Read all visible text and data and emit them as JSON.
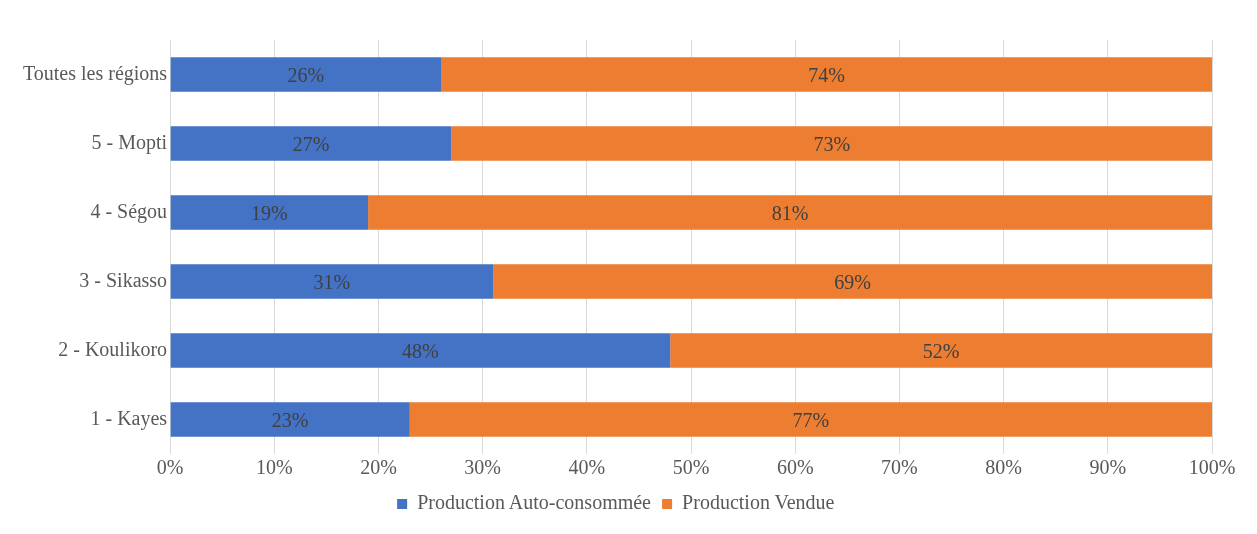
{
  "chart_data": {
    "type": "bar",
    "orientation": "horizontal",
    "stacked": true,
    "categories": [
      "Toutes les régions",
      "5 - Mopti",
      "4 - Ségou",
      "3 - Sikasso",
      "2 - Koulikoro",
      "1 - Kayes"
    ],
    "series": [
      {
        "name": "Production Auto-consommée",
        "color": "#4472c4",
        "values": [
          26,
          27,
          19,
          31,
          48,
          23
        ],
        "value_labels": [
          "26%",
          "27%",
          "19%",
          "31%",
          "48%",
          "23%"
        ]
      },
      {
        "name": "Production Vendue",
        "color": "#ed7d31",
        "values": [
          74,
          73,
          81,
          69,
          52,
          77
        ],
        "value_labels": [
          "74%",
          "73%",
          "81%",
          "69%",
          "52%",
          "77%"
        ]
      }
    ],
    "xlim": [
      0,
      100
    ],
    "xticks": [
      {
        "value": 0,
        "label": "0%"
      },
      {
        "value": 10,
        "label": "10%"
      },
      {
        "value": 20,
        "label": "20%"
      },
      {
        "value": 30,
        "label": "30%"
      },
      {
        "value": 40,
        "label": "40%"
      },
      {
        "value": 50,
        "label": "50%"
      },
      {
        "value": 60,
        "label": "60%"
      },
      {
        "value": 70,
        "label": "70%"
      },
      {
        "value": 80,
        "label": "80%"
      },
      {
        "value": 90,
        "label": "90%"
      },
      {
        "value": 100,
        "label": "100%"
      }
    ],
    "grid": "x",
    "legend": "bottom"
  }
}
